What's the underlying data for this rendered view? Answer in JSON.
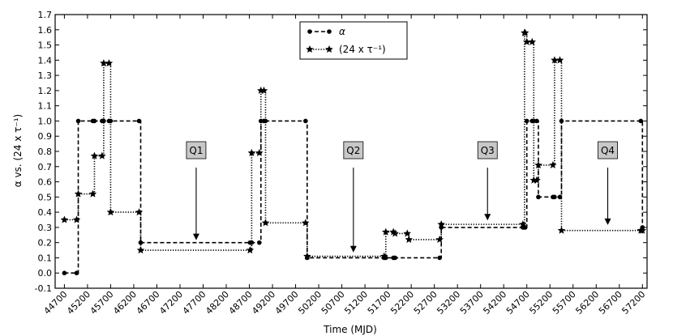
{
  "chart_data": {
    "type": "line",
    "xlabel": "Time (MJD)",
    "ylabel": "α vs. (24 x τ⁻¹)",
    "xlim": [
      44500,
      57300
    ],
    "ylim": [
      -0.1,
      1.7
    ],
    "grid": false,
    "legend_position": "top-center",
    "x_ticks": [
      44700,
      45200,
      45700,
      46200,
      46700,
      47200,
      47700,
      48200,
      48700,
      49200,
      49700,
      50200,
      50700,
      51200,
      51700,
      52200,
      52700,
      53200,
      53700,
      54200,
      54700,
      55200,
      55700,
      56200,
      56700,
      57200
    ],
    "y_ticks": [
      -0.1,
      0.0,
      0.1,
      0.2,
      0.3,
      0.4,
      0.5,
      0.6,
      0.7,
      0.8,
      0.9,
      1.0,
      1.1,
      1.2,
      1.3,
      1.4,
      1.5,
      1.6,
      1.7
    ],
    "series": [
      {
        "name": "α",
        "style": "dashed-circle",
        "x": [
          44700,
          45000,
          45350,
          45550,
          45700,
          46350,
          48750,
          48950,
          49050,
          49950,
          51650,
          51850,
          52850,
          54650,
          54700,
          54850,
          54950,
          55300,
          55450,
          57200
        ],
        "y": [
          0.0,
          1.0,
          1.0,
          1.0,
          1.0,
          0.2,
          0.2,
          1.0,
          1.0,
          0.1,
          0.1,
          0.1,
          0.3,
          0.3,
          1.0,
          1.0,
          0.5,
          0.5,
          1.0,
          0.3
        ]
      },
      {
        "name": "(24 x τ⁻¹)",
        "style": "dotted-star",
        "x": [
          44700,
          45000,
          45350,
          45550,
          45700,
          46350,
          48750,
          48950,
          49050,
          49950,
          51650,
          51850,
          52150,
          52850,
          54650,
          54700,
          54850,
          54950,
          55300,
          55450,
          57200
        ],
        "y": [
          0.35,
          0.52,
          0.77,
          1.38,
          0.4,
          0.15,
          0.79,
          1.2,
          0.33,
          0.11,
          0.27,
          0.26,
          0.22,
          0.32,
          1.58,
          1.52,
          0.61,
          0.71,
          1.4,
          0.28,
          0.28
        ]
      }
    ],
    "annotations": [
      {
        "label": "Q1",
        "x": 47550,
        "arrow_to_y": 0.2
      },
      {
        "label": "Q2",
        "x": 50950,
        "arrow_to_y": 0.12
      },
      {
        "label": "Q3",
        "x": 53850,
        "arrow_to_y": 0.33
      },
      {
        "label": "Q4",
        "x": 56450,
        "arrow_to_y": 0.3
      }
    ]
  }
}
